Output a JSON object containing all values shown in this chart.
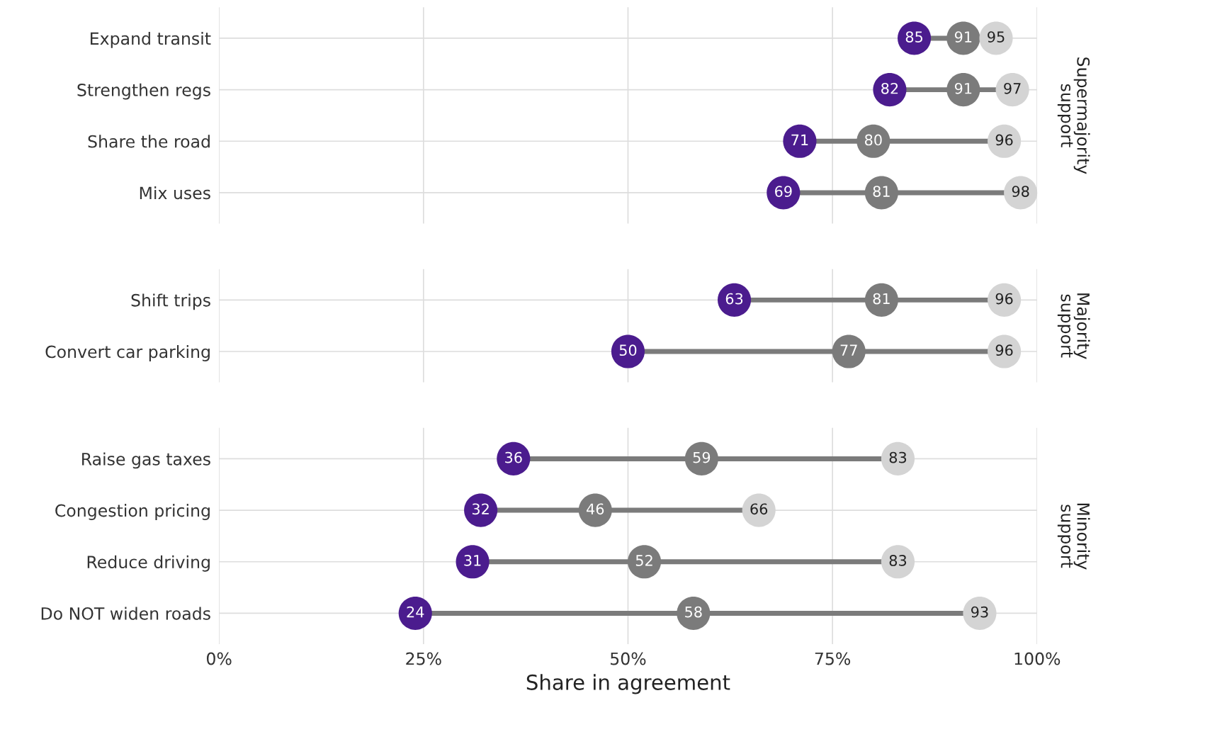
{
  "chart_data": [
    {
      "type": "scatter",
      "orientation": "horizontal",
      "y2label": "Supermajority\nsupport",
      "categories": [
        "Expand transit",
        "Strengthen regs",
        "Share the road",
        "Mix uses"
      ],
      "series": [
        {
          "color": "#4b1c8e",
          "values": [
            85,
            82,
            71,
            69
          ]
        },
        {
          "color": "#7b7b7b",
          "values": [
            91,
            91,
            80,
            81
          ]
        },
        {
          "color": "#d4d4d4",
          "values": [
            95,
            97,
            96,
            98
          ]
        }
      ],
      "xlim": [
        0,
        100
      ],
      "xticks": [
        {
          "value": 0,
          "label": null
        },
        {
          "value": 25,
          "label": null
        },
        {
          "value": 50,
          "label": null
        },
        {
          "value": 75,
          "label": null
        },
        {
          "value": 100,
          "label": null
        }
      ],
      "tick_labels": "y",
      "data_labels": true,
      "marker": "circle",
      "grid": true
    },
    {
      "type": "scatter",
      "orientation": "horizontal",
      "y2label": "Majority\nsupport",
      "categories": [
        "Shift trips",
        "Convert car parking"
      ],
      "series": [
        {
          "color": "#4b1c8e",
          "values": [
            63,
            50
          ]
        },
        {
          "color": "#7b7b7b",
          "values": [
            81,
            77
          ]
        },
        {
          "color": "#d4d4d4",
          "values": [
            96,
            96
          ]
        }
      ],
      "xlim": [
        0,
        100
      ],
      "xticks": [
        {
          "value": 0,
          "label": null
        },
        {
          "value": 25,
          "label": null
        },
        {
          "value": 50,
          "label": null
        },
        {
          "value": 75,
          "label": null
        },
        {
          "value": 100,
          "label": null
        }
      ],
      "tick_labels": "y",
      "data_labels": true,
      "marker": "circle",
      "grid": true
    },
    {
      "type": "scatter",
      "orientation": "horizontal",
      "y2label": "Minority\nsupport",
      "xlabel": "Share in agreement",
      "categories": [
        "Raise gas taxes",
        "Congestion pricing",
        "Reduce driving",
        "Do NOT widen roads"
      ],
      "series": [
        {
          "color": "#4b1c8e",
          "values": [
            36,
            32,
            31,
            24
          ]
        },
        {
          "color": "#7b7b7b",
          "values": [
            59,
            46,
            52,
            58
          ]
        },
        {
          "color": "#d4d4d4",
          "values": [
            83,
            66,
            83,
            93
          ]
        }
      ],
      "xlim": [
        0,
        100
      ],
      "xticks": [
        {
          "value": 0,
          "label": "0%"
        },
        {
          "value": 25,
          "label": "25%"
        },
        {
          "value": 50,
          "label": "50%"
        },
        {
          "value": 75,
          "label": "75%"
        },
        {
          "value": 100,
          "label": "100%"
        }
      ],
      "data_labels": true,
      "marker": "circle",
      "grid": true
    }
  ]
}
